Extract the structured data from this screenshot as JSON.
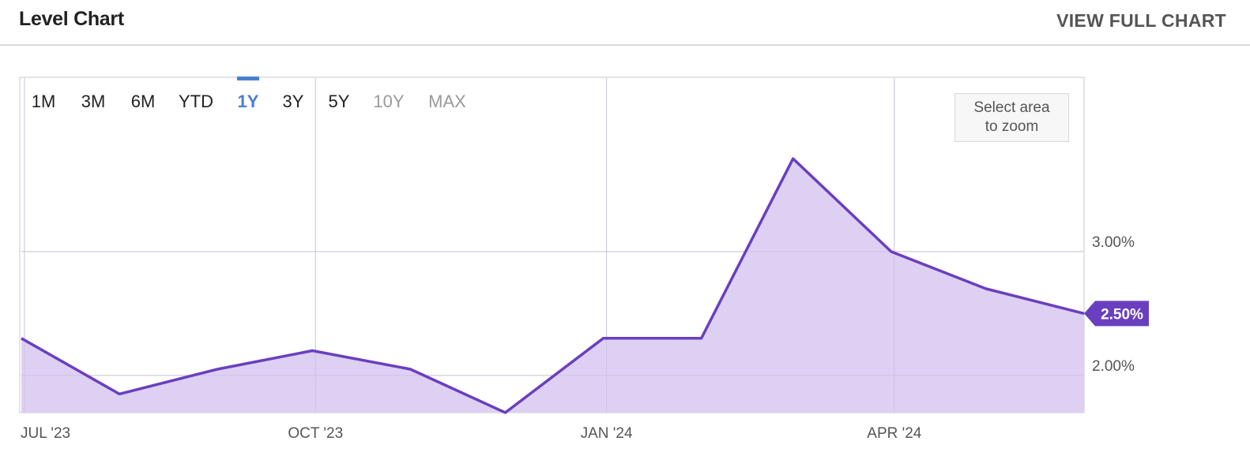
{
  "header": {
    "title": "Level Chart",
    "view_full_label": "VIEW FULL CHART"
  },
  "range_selector": {
    "options": [
      "1M",
      "3M",
      "6M",
      "YTD",
      "1Y",
      "3Y",
      "5Y",
      "10Y",
      "MAX"
    ],
    "selected": "1Y",
    "disabled": [
      "10Y",
      "MAX"
    ]
  },
  "zoom_hint": {
    "line1": "Select area",
    "line2": "to zoom"
  },
  "chart_data": {
    "type": "area",
    "x": [
      "2023-06-30",
      "2023-07-31",
      "2023-08-31",
      "2023-09-30",
      "2023-10-31",
      "2023-11-30",
      "2023-12-31",
      "2024-01-31",
      "2024-02-29",
      "2024-03-31",
      "2024-04-30",
      "2024-05-31"
    ],
    "series": [
      {
        "values": [
          2.3,
          1.85,
          2.05,
          2.2,
          2.05,
          1.7,
          2.3,
          2.3,
          3.75,
          3.0,
          2.7,
          2.5
        ]
      }
    ],
    "x_ticks": [
      "JUL '23",
      "OCT '23",
      "JAN '24",
      "APR '24"
    ],
    "y_ticks": [
      "2.00%",
      "3.00%"
    ],
    "last_value_label": "2.50%",
    "ylim": [
      1.7,
      4.4
    ],
    "grid": true,
    "colors": {
      "line": "#6a3fbf",
      "fill": "#dccdf1",
      "label_bg": "#6a3fbf",
      "selected": "#4a7fd0",
      "grid": "#e0e0e0"
    }
  }
}
